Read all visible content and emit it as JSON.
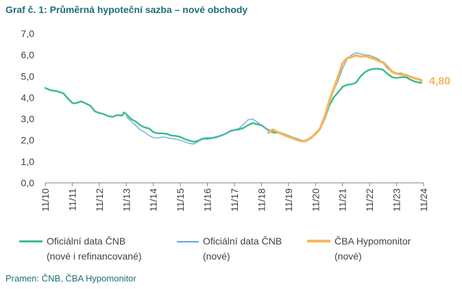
{
  "title": "Graf č. 1: Průměrná hypoteční sazba – nové obchody",
  "source": "Pramen: ČNB, ČBA Hypomonitor",
  "chart_data": {
    "type": "line",
    "ylim": [
      0,
      7
    ],
    "yticks": [
      "0,0",
      "1,0",
      "2,0",
      "3,0",
      "4,0",
      "5,0",
      "6,0",
      "7,0"
    ],
    "xlim": [
      2010.83,
      2024.83
    ],
    "xtick_labels": [
      "11/10",
      "11/11",
      "11/12",
      "11/13",
      "11/14",
      "11/15",
      "11/16",
      "11/17",
      "11/18",
      "11/19",
      "11/20",
      "11/21",
      "11/22",
      "11/23",
      "11/24"
    ],
    "grid": false,
    "legend_position": "bottom",
    "end_label": "4,80",
    "series": [
      {
        "name": "Oficiální data ČNB (nové i refinancované)",
        "legend_line1": "Oficiální data ČNB",
        "legend_line2": "(nové i refinancované)",
        "color": "#3dbb8c",
        "width": 2.5,
        "x": [
          2010.83,
          2011.0,
          2011.25,
          2011.5,
          2011.67,
          2011.83,
          2011.92,
          2012.0,
          2012.17,
          2012.33,
          2012.5,
          2012.67,
          2012.83,
          2013.0,
          2013.17,
          2013.33,
          2013.5,
          2013.67,
          2013.75,
          2013.83,
          2014.0,
          2014.17,
          2014.33,
          2014.5,
          2014.67,
          2014.83,
          2015.0,
          2015.17,
          2015.33,
          2015.5,
          2015.67,
          2015.83,
          2016.0,
          2016.17,
          2016.33,
          2016.5,
          2016.67,
          2016.83,
          2017.0,
          2017.17,
          2017.33,
          2017.5,
          2017.67,
          2017.83,
          2018.0,
          2018.17,
          2018.33,
          2018.5,
          2018.67,
          2018.83,
          2019.0,
          2019.17,
          2019.33,
          2019.5,
          2019.67,
          2019.83,
          2020.0,
          2020.17,
          2020.33,
          2020.5,
          2020.67,
          2020.83,
          2021.0,
          2021.17,
          2021.33,
          2021.5,
          2021.67,
          2021.83,
          2022.0,
          2022.17,
          2022.33,
          2022.5,
          2022.67,
          2022.83,
          2023.0,
          2023.17,
          2023.33,
          2023.5,
          2023.67,
          2023.83,
          2024.0,
          2024.17,
          2024.33,
          2024.5,
          2024.67,
          2024.75
        ],
        "y": [
          4.45,
          4.35,
          4.3,
          4.2,
          3.95,
          3.75,
          3.72,
          3.75,
          3.82,
          3.72,
          3.62,
          3.35,
          3.28,
          3.22,
          3.12,
          3.1,
          3.18,
          3.15,
          3.3,
          3.22,
          3.0,
          2.88,
          2.72,
          2.6,
          2.55,
          2.38,
          2.32,
          2.32,
          2.3,
          2.22,
          2.2,
          2.15,
          2.05,
          1.98,
          1.92,
          1.98,
          2.08,
          2.1,
          2.1,
          2.15,
          2.22,
          2.3,
          2.42,
          2.48,
          2.5,
          2.58,
          2.7,
          2.8,
          2.75,
          2.7,
          2.55,
          2.4,
          2.35,
          2.35,
          2.28,
          2.2,
          2.12,
          2.05,
          1.97,
          1.97,
          2.1,
          2.3,
          2.55,
          3.0,
          3.6,
          4.0,
          4.25,
          4.5,
          4.6,
          4.62,
          4.7,
          5.0,
          5.2,
          5.3,
          5.35,
          5.35,
          5.3,
          5.1,
          4.95,
          4.92,
          4.95,
          4.95,
          4.85,
          4.75,
          4.7,
          4.7
        ]
      },
      {
        "name": "Oficiální data ČNB (nové)",
        "legend_line1": "Oficiální data ČNB",
        "legend_line2": "(nové)",
        "color": "#5aa9d6",
        "width": 1.3,
        "x": [
          2013.83,
          2014.0,
          2014.17,
          2014.33,
          2014.5,
          2014.67,
          2014.83,
          2015.0,
          2015.17,
          2015.33,
          2015.5,
          2015.67,
          2015.83,
          2016.0,
          2016.17,
          2016.33,
          2016.5,
          2016.67,
          2016.83,
          2017.0,
          2017.17,
          2017.33,
          2017.5,
          2017.67,
          2017.83,
          2018.0,
          2018.17,
          2018.33,
          2018.5,
          2018.67,
          2018.83,
          2019.0,
          2019.17,
          2019.33,
          2019.5,
          2019.67,
          2019.83,
          2020.0,
          2020.17,
          2020.33,
          2020.5,
          2020.67,
          2020.83,
          2021.0,
          2021.17,
          2021.33,
          2021.5,
          2021.67,
          2021.83,
          2022.0,
          2022.17,
          2022.33,
          2022.5,
          2022.67,
          2022.83,
          2023.0,
          2023.17,
          2023.33,
          2023.5,
          2023.67,
          2023.83,
          2024.0,
          2024.17,
          2024.33,
          2024.5,
          2024.67,
          2024.75
        ],
        "y": [
          3.1,
          2.9,
          2.7,
          2.5,
          2.38,
          2.22,
          2.12,
          2.1,
          2.15,
          2.12,
          2.08,
          2.05,
          2.0,
          1.92,
          1.85,
          1.82,
          1.95,
          2.05,
          2.05,
          2.08,
          2.12,
          2.2,
          2.3,
          2.45,
          2.5,
          2.55,
          2.75,
          2.95,
          3.0,
          2.85,
          2.7,
          2.55,
          2.45,
          2.4,
          2.38,
          2.3,
          2.22,
          2.12,
          2.02,
          1.97,
          2.0,
          2.15,
          2.35,
          2.6,
          3.1,
          3.75,
          4.3,
          4.8,
          5.35,
          5.8,
          6.0,
          6.1,
          6.05,
          6.0,
          5.98,
          5.9,
          5.8,
          5.6,
          5.35,
          5.2,
          5.15,
          5.15,
          5.05,
          5.0,
          4.92,
          4.88,
          4.85
        ]
      },
      {
        "name": "ČBA Hypomonitor (nové)",
        "legend_line1": "ČBA Hypomonitor",
        "legend_line2": "(nové)",
        "color": "#f6b65c",
        "width": 3.5,
        "x": [
          2019.08,
          2019.25,
          2019.42,
          2019.58,
          2019.75,
          2019.92,
          2020.08,
          2020.25,
          2020.42,
          2020.58,
          2020.75,
          2020.92,
          2021.0,
          2021.17,
          2021.33,
          2021.5,
          2021.67,
          2021.83,
          2022.0,
          2022.17,
          2022.33,
          2022.5,
          2022.67,
          2022.83,
          2023.0,
          2023.17,
          2023.33,
          2023.5,
          2023.67,
          2023.83,
          2024.0,
          2024.17,
          2024.33,
          2024.5,
          2024.67,
          2024.75
        ],
        "y": [
          2.35,
          2.5,
          2.38,
          2.3,
          2.2,
          2.12,
          2.05,
          1.97,
          1.95,
          2.05,
          2.2,
          2.42,
          2.55,
          3.1,
          3.8,
          4.4,
          5.0,
          5.6,
          5.85,
          5.9,
          5.98,
          5.92,
          5.95,
          5.88,
          5.82,
          5.72,
          5.65,
          5.45,
          5.2,
          5.12,
          5.08,
          5.05,
          4.98,
          4.9,
          4.85,
          4.8
        ]
      }
    ]
  }
}
